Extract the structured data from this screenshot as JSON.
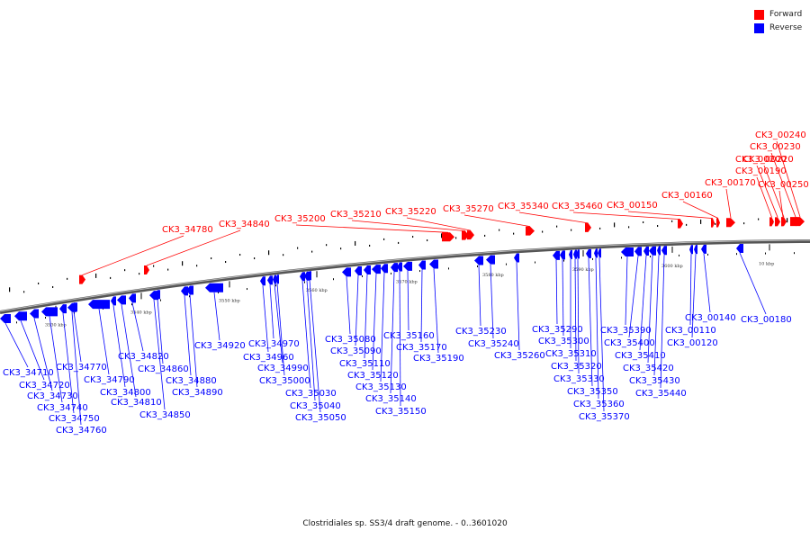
{
  "legend": {
    "forward_label": "Forward",
    "reverse_label": "Reverse",
    "forward_color": "#ff0000",
    "reverse_color": "#0000ff"
  },
  "footer": {
    "caption": "Clostridiales sp. SS3/4 draft genome. - 0..3601020"
  },
  "ticks": [
    "3530 kbp",
    "3540 kbp",
    "3550 kbp",
    "3560 kbp",
    "3570 kbp",
    "3580 kbp",
    "3590 kbp",
    "3600 kbp",
    "10 kbp"
  ],
  "forward_genes": [
    "CK3_34780",
    "CK3_34840",
    "CK3_35200",
    "CK3_35210",
    "CK3_35220",
    "CK3_35270",
    "CK3_35340",
    "CK3_35460",
    "CK3_00150",
    "CK3_00160",
    "CK3_00170",
    "CK3_00190",
    "CK3_00200",
    "CK3_00220",
    "CK3_00230",
    "CK3_00240",
    "CK3_00250"
  ],
  "reverse_genes": [
    "CK3_34710",
    "CK3_34720",
    "CK3_34730",
    "CK3_34740",
    "CK3_34750",
    "CK3_34760",
    "CK3_34770",
    "CK3_34790",
    "CK3_34800",
    "CK3_34810",
    "CK3_34820",
    "CK3_34850",
    "CK3_34860",
    "CK3_34880",
    "CK3_34890",
    "CK3_34920",
    "CK3_34960",
    "CK3_34970",
    "CK3_34990",
    "CK3_35000",
    "CK3_35030",
    "CK3_35040",
    "CK3_35050",
    "CK3_35080",
    "CK3_35090",
    "CK3_35110",
    "CK3_35120",
    "CK3_35130",
    "CK3_35140",
    "CK3_35150",
    "CK3_35160",
    "CK3_35170",
    "CK3_35190",
    "CK3_35230",
    "CK3_35240",
    "CK3_35260",
    "CK3_35290",
    "CK3_35300",
    "CK3_35310",
    "CK3_35320",
    "CK3_35330",
    "CK3_35350",
    "CK3_35360",
    "CK3_35370",
    "CK3_35390",
    "CK3_35400",
    "CK3_35410",
    "CK3_35420",
    "CK3_35430",
    "CK3_35440",
    "CK3_00110",
    "CK3_00120",
    "CK3_00140",
    "CK3_00180"
  ]
}
